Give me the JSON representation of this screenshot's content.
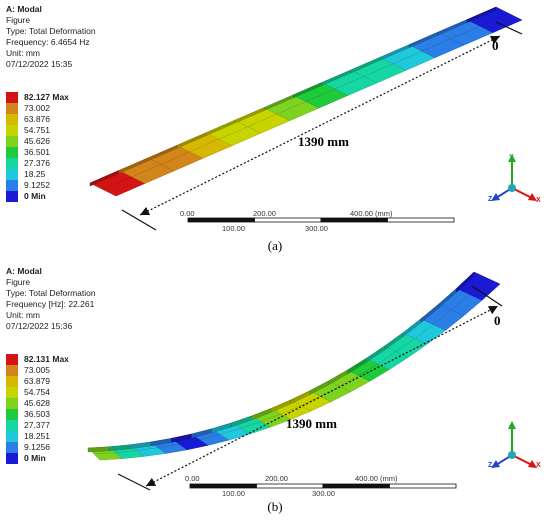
{
  "colors": {
    "scale": [
      "#1a1ad6",
      "#2a7ee6",
      "#20c8dc",
      "#16d6a4",
      "#1ecb3a",
      "#7ed321",
      "#c8d400",
      "#d6b800",
      "#d2851a",
      "#d41414"
    ],
    "axis_x": "#d11",
    "axis_y": "#2a2",
    "axis_z": "#24c"
  },
  "panels": [
    {
      "title": "A: Modal",
      "lines": [
        "Figure",
        "Type: Total Deformation",
        "Frequency: 6.4654 Hz",
        "Unit: mm",
        "07/12/2022 15:35"
      ],
      "legend": [
        "82.127 Max",
        "73.002",
        "63.876",
        "54.751",
        "45.626",
        "36.501",
        "27.376",
        "18.25",
        "9.1252",
        "0 Min"
      ],
      "dimension_label": "1390 mm",
      "end_label": "0",
      "scale_top": [
        "0.00",
        "200.00",
        "400.00 (mm)"
      ],
      "scale_bottom": [
        "100.00",
        "300.00"
      ],
      "axes": {
        "y": "Y",
        "z": "Z",
        "x": "X"
      },
      "caption": "(a)"
    },
    {
      "title": "A: Modal",
      "lines": [
        "Figure",
        "Type: Total Deformation",
        "Frequency [Hz]: 22.261",
        "Unit: mm",
        "07/12/2022 15:36"
      ],
      "legend": [
        "82.131 Max",
        "73.005",
        "63.879",
        "54.754",
        "45.628",
        "36.503",
        "27.377",
        "18.251",
        "9.1256",
        "0 Min"
      ],
      "dimension_label": "1390 mm",
      "end_label": "0",
      "scale_top": [
        "0.00",
        "200.00",
        "400.00 (mm)"
      ],
      "scale_bottom": [
        "100.00",
        "300.00"
      ],
      "axes": {
        "y": "Y",
        "z": "Z",
        "x": "X"
      },
      "caption": "(b)"
    }
  ]
}
